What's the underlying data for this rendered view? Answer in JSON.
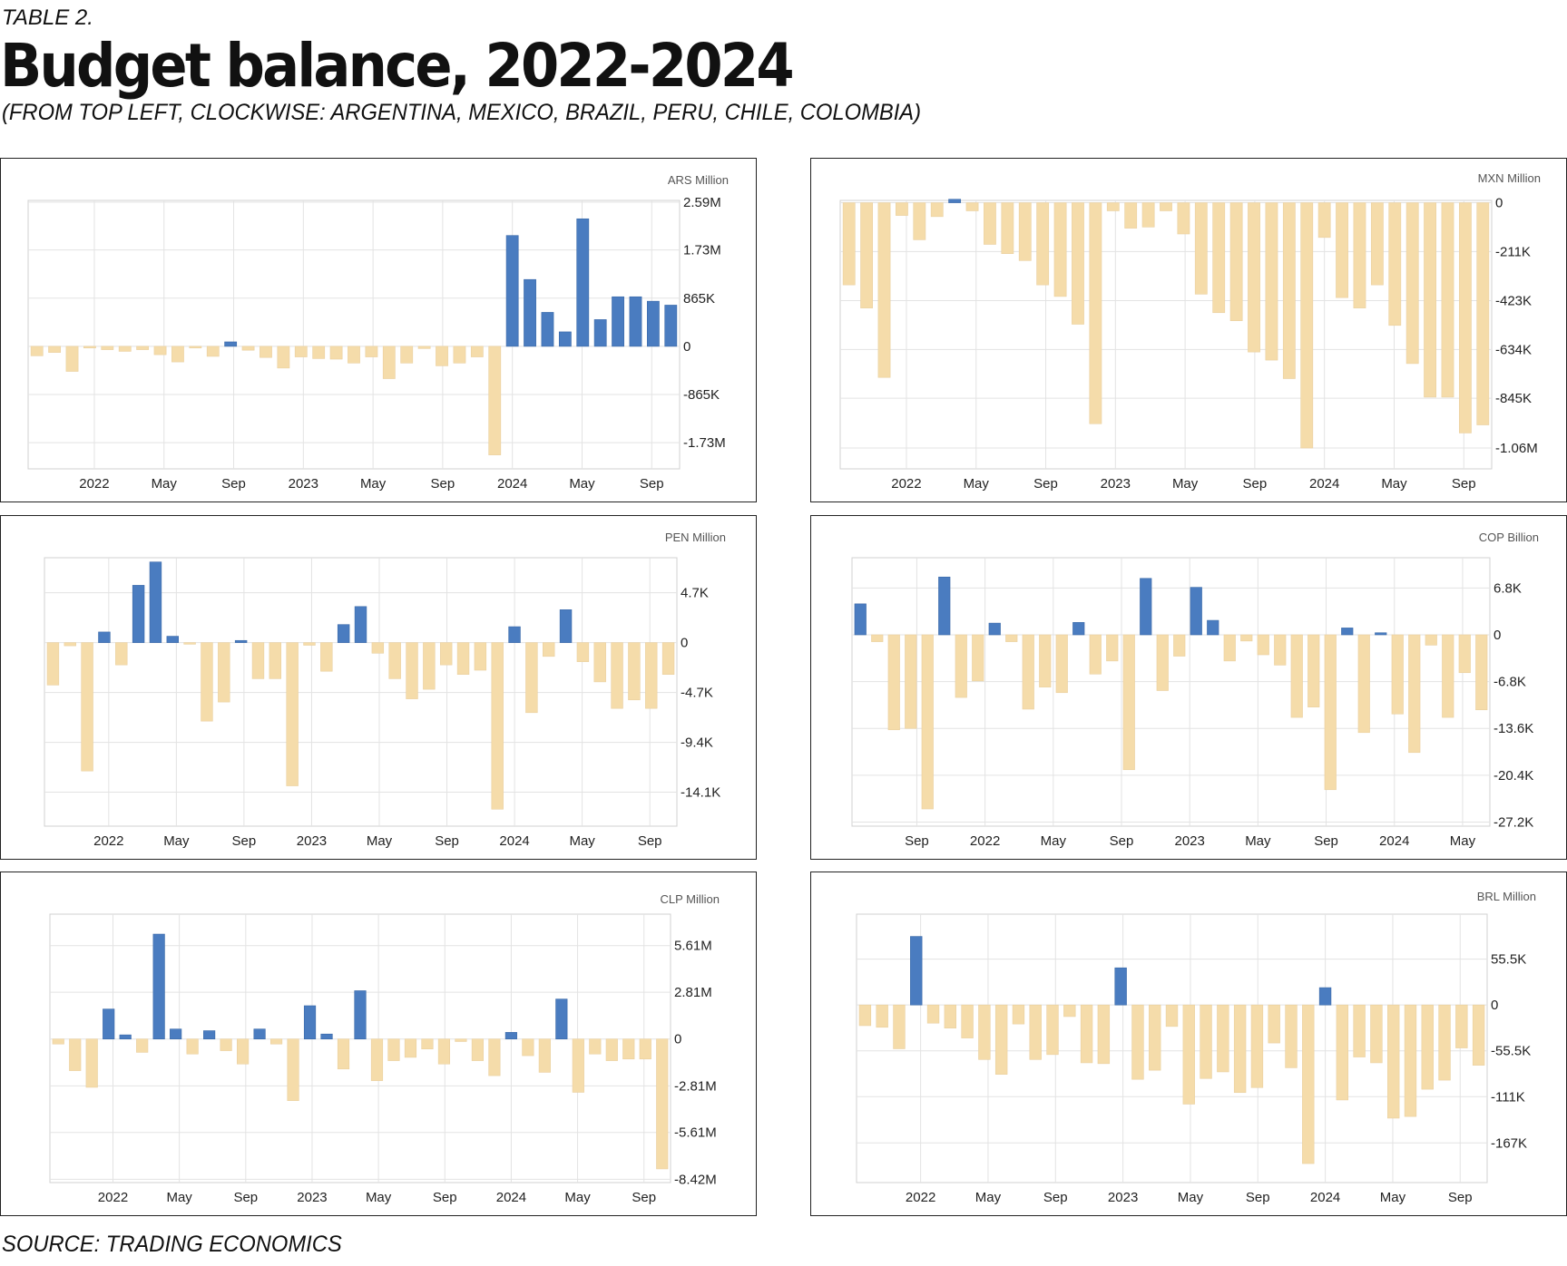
{
  "header": {
    "table_label": "TABLE 2.",
    "title": "Budget balance, 2022-2024",
    "subtitle": "(FROM TOP LEFT, CLOCKWISE: ARGENTINA, MEXICO, BRAZIL, PERU, CHILE, COLOMBIA)"
  },
  "footer": {
    "source": "SOURCE: TRADING ECONOMICS"
  },
  "colors": {
    "positive": "#4a7cc0",
    "negative": "#f5dcaa",
    "grid": "#e3e3e3",
    "text": "#222222"
  },
  "chart_data": [
    {
      "type": "bar",
      "unit": "ARS Million",
      "yticks": [
        2590000,
        1730000,
        865000,
        0,
        -865000,
        -1730000
      ],
      "ytick_labels": [
        "2.59M",
        "1.73M",
        "865K",
        "0",
        "-865K",
        "-1.73M"
      ],
      "ylim": [
        -2200000,
        2620000
      ],
      "xtick_labels": [
        "2022",
        "May",
        "Sep",
        "2023",
        "May",
        "Sep",
        "2024",
        "May",
        "Sep"
      ],
      "values": [
        -170000,
        -110000,
        -450000,
        -30000,
        -60000,
        -90000,
        -60000,
        -150000,
        -280000,
        -30000,
        -180000,
        80000,
        -70000,
        -200000,
        -390000,
        -190000,
        -220000,
        -230000,
        -300000,
        -190000,
        -580000,
        -300000,
        -40000,
        -350000,
        -300000,
        -190000,
        -1950000,
        1990000,
        1200000,
        610000,
        260000,
        2290000,
        480000,
        890000,
        890000,
        810000,
        740000
      ]
    },
    {
      "type": "bar",
      "unit": "MXN Million",
      "yticks": [
        0,
        -211000,
        -423000,
        -634000,
        -845000,
        -1060000
      ],
      "ytick_labels": [
        "0",
        "-211K",
        "-423K",
        "-634K",
        "-845K",
        "-1.06M"
      ],
      "ylim": [
        -1150000,
        10000
      ],
      "xtick_labels": [
        "2022",
        "May",
        "Sep",
        "2023",
        "May",
        "Sep",
        "2024",
        "May",
        "Sep"
      ],
      "values": [
        -355000,
        -455000,
        -755000,
        -55000,
        -160000,
        -60000,
        15000,
        -35000,
        -180000,
        -220000,
        -250000,
        -355000,
        -405000,
        -525000,
        -955000,
        -35000,
        -110000,
        -105000,
        -35000,
        -135000,
        -395000,
        -475000,
        -510000,
        -645000,
        -680000,
        -760000,
        -1060000,
        -150000,
        -410000,
        -455000,
        -355000,
        -530000,
        -695000,
        -840000,
        -840000,
        -995000,
        -960000
      ]
    },
    {
      "type": "bar",
      "unit": "PEN Million",
      "yticks": [
        4700,
        0,
        -4700,
        -9400,
        -14100
      ],
      "ytick_labels": [
        "4.7K",
        "0",
        "-4.7K",
        "-9.4K",
        "-14.1K"
      ],
      "ylim": [
        -17300,
        8000
      ],
      "xtick_labels": [
        "2022",
        "May",
        "Sep",
        "2023",
        "May",
        "Sep",
        "2024",
        "May",
        "Sep"
      ],
      "values": [
        -4000,
        -300,
        -12100,
        1000,
        -2100,
        5400,
        7600,
        600,
        -150,
        -7400,
        -5600,
        200,
        -3400,
        -3400,
        -13500,
        -250,
        -2700,
        1700,
        3400,
        -1000,
        -3400,
        -5300,
        -4400,
        -2100,
        -3000,
        -2600,
        -15700,
        1500,
        -6600,
        -1300,
        3100,
        -1800,
        -3700,
        -6200,
        -5400,
        -6200,
        -3000
      ]
    },
    {
      "type": "bar",
      "unit": "COP Billion",
      "yticks": [
        6800,
        0,
        -6800,
        -13600,
        -20400,
        -27200
      ],
      "ytick_labels": [
        "6.8K",
        "0",
        "-6.8K",
        "-13.6K",
        "-20.4K",
        "-27.2K"
      ],
      "ylim": [
        -27800,
        11200
      ],
      "xtick_labels": [
        "Sep",
        "2022",
        "May",
        "Sep",
        "2023",
        "May",
        "Sep",
        "2024",
        "May"
      ],
      "values": [
        4500,
        -1000,
        -13800,
        -13600,
        -25300,
        8400,
        -9100,
        -6700,
        1700,
        -1000,
        -10800,
        -7600,
        -8400,
        1800,
        -5700,
        -3800,
        -19600,
        8200,
        -8100,
        -3100,
        6900,
        2100,
        -3800,
        -900,
        -2900,
        -4400,
        -12000,
        -10500,
        -22500,
        1000,
        -14200,
        300,
        -11500,
        -17100,
        -1500,
        -12000,
        -5500,
        -10900
      ]
    },
    {
      "type": "bar",
      "unit": "CLP Million",
      "yticks": [
        5610000,
        2810000,
        0,
        -2810000,
        -5610000,
        -8420000
      ],
      "ytick_labels": [
        "5.61M",
        "2.81M",
        "0",
        "-2.81M",
        "-5.61M",
        "-8.42M"
      ],
      "ylim": [
        -8620000,
        7500000
      ],
      "xtick_labels": [
        "2022",
        "May",
        "Sep",
        "2023",
        "May",
        "Sep",
        "2024",
        "May",
        "Sep"
      ],
      "values": [
        -300000,
        -1900000,
        -2900000,
        1800000,
        250000,
        -800000,
        6300000,
        600000,
        -900000,
        500000,
        -700000,
        -1500000,
        600000,
        -300000,
        -3700000,
        2000000,
        300000,
        -1800000,
        2900000,
        -2500000,
        -1300000,
        -1100000,
        -600000,
        -1500000,
        -150000,
        -1300000,
        -2200000,
        400000,
        -1000000,
        -2000000,
        2400000,
        -3200000,
        -900000,
        -1300000,
        -1200000,
        -1200000,
        -7800000
      ]
    },
    {
      "type": "bar",
      "unit": "BRL Million",
      "yticks": [
        55500,
        0,
        -55500,
        -111000,
        -167000
      ],
      "ytick_labels": [
        "55.5K",
        "0",
        "-55.5K",
        "-111K",
        "-167K"
      ],
      "ylim": [
        -215000,
        110000
      ],
      "xtick_labels": [
        "2022",
        "May",
        "Sep",
        "2023",
        "May",
        "Sep",
        "2024",
        "May",
        "Sep"
      ],
      "values": [
        -25000,
        -27000,
        -53000,
        83000,
        -22000,
        -28000,
        -40000,
        -66000,
        -84000,
        -23000,
        -66000,
        -60000,
        -14000,
        -70000,
        -71000,
        45000,
        -90000,
        -79000,
        -26000,
        -120000,
        -89000,
        -81000,
        -106000,
        -100000,
        -46000,
        -76000,
        -192000,
        21000,
        -115000,
        -63000,
        -70000,
        -137000,
        -135000,
        -102000,
        -91000,
        -52000,
        -73000
      ]
    }
  ]
}
